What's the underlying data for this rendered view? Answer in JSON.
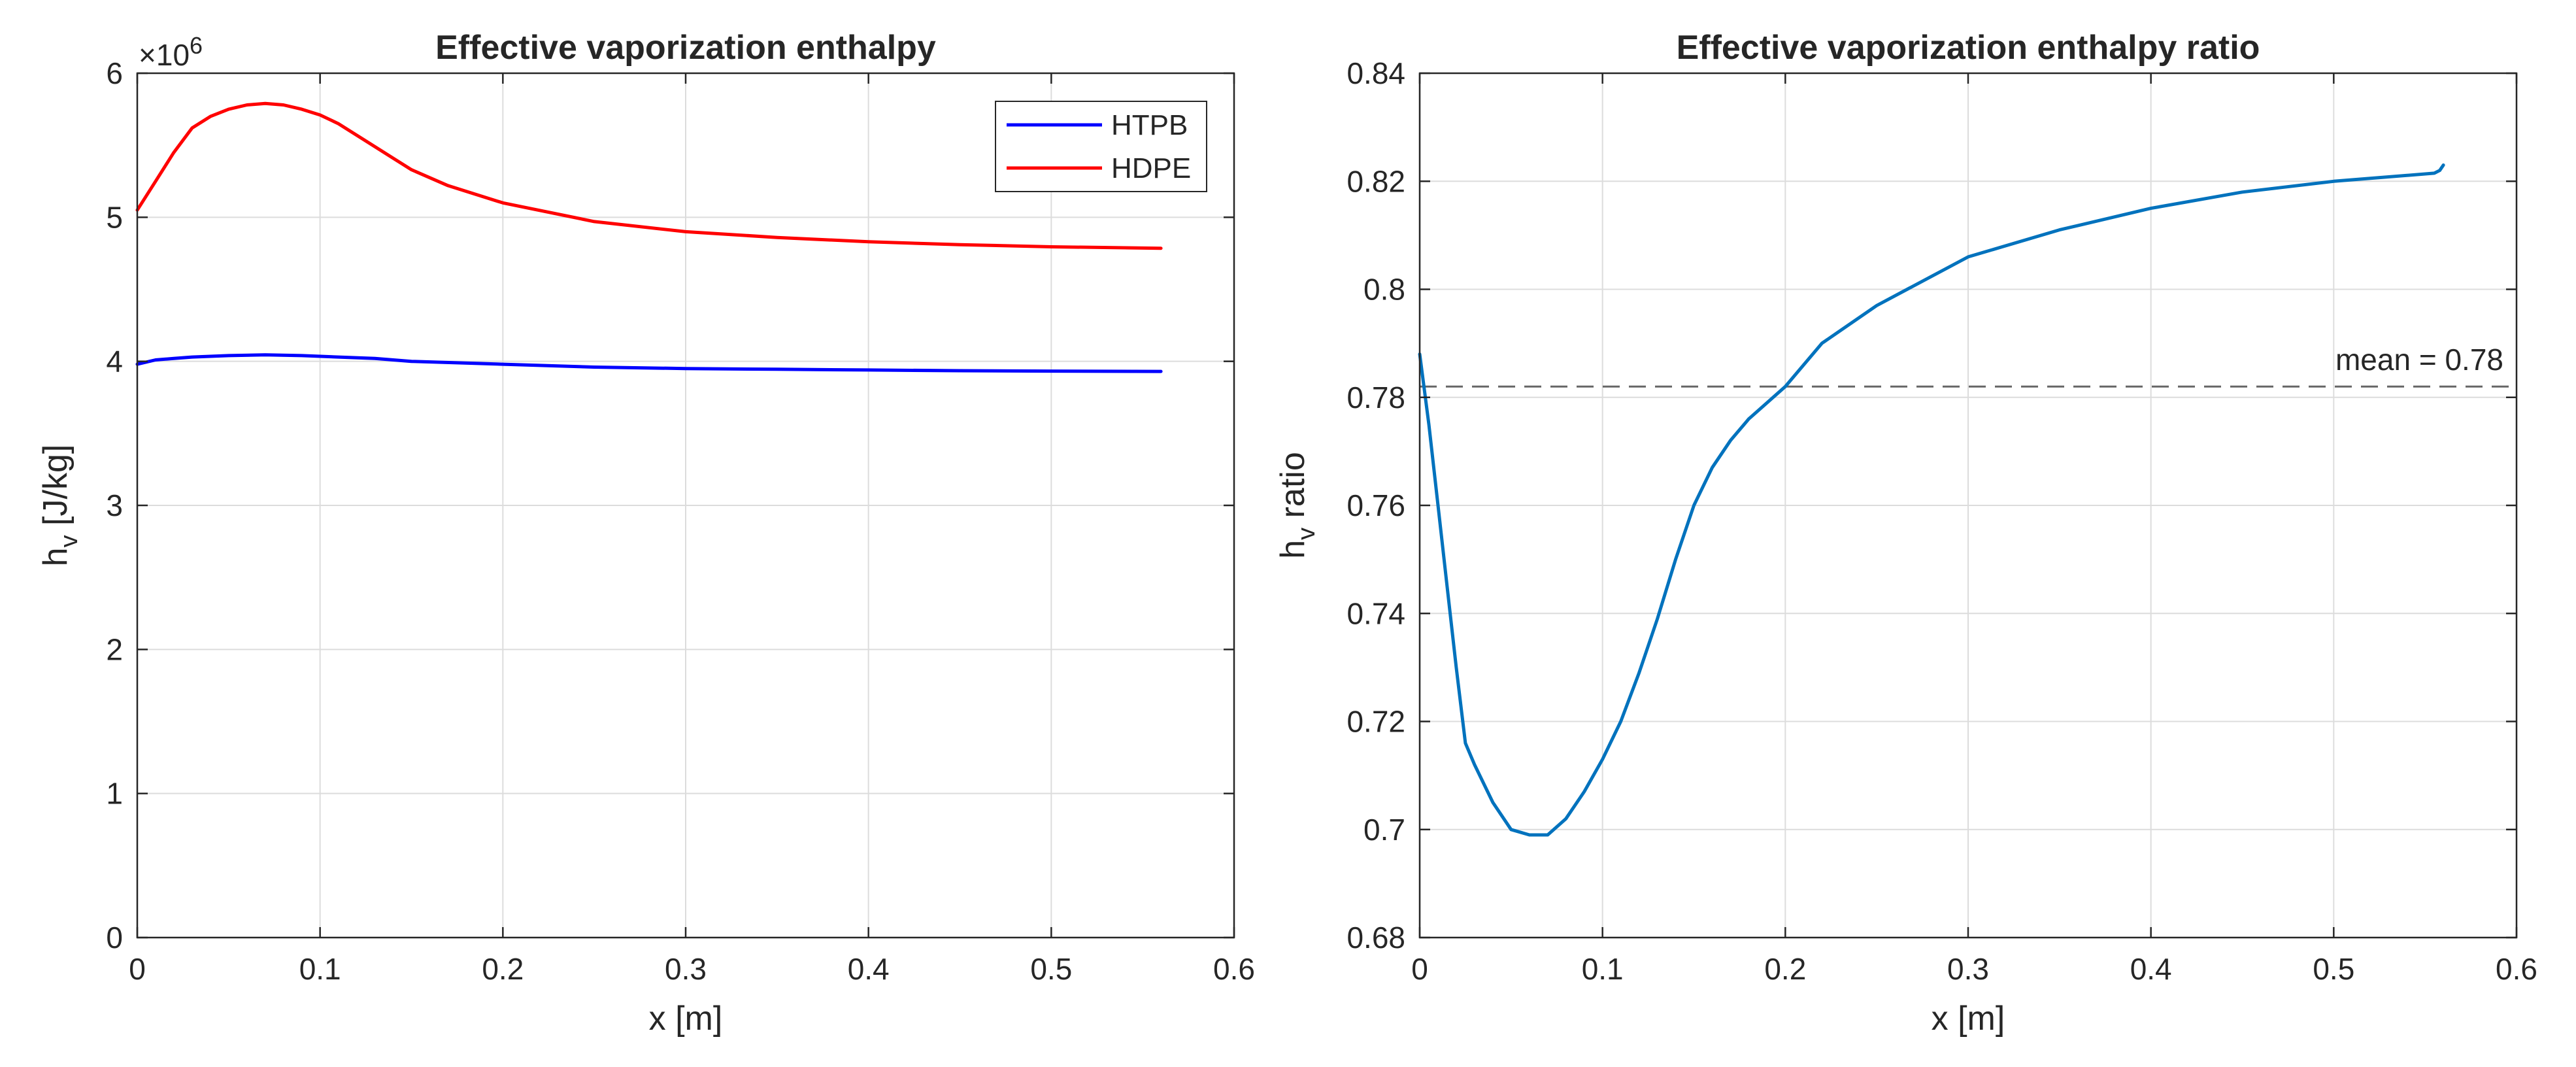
{
  "chart_data": [
    {
      "type": "line",
      "title": "Effective vaporization enthalpy",
      "xlabel": "x [m]",
      "ylabel": "h",
      "ylabel_sub": "v",
      "ylabel_rest": " [J/kg]",
      "exponent_base": "×10",
      "exponent_power": "6",
      "xlim": [
        0,
        0.6
      ],
      "ylim": [
        0,
        6
      ],
      "xticks": [
        0,
        0.1,
        0.2,
        0.3,
        0.4,
        0.5,
        0.6
      ],
      "xtick_labels": [
        "0",
        "0.1",
        "0.2",
        "0.3",
        "0.4",
        "0.5",
        "0.6"
      ],
      "yticks": [
        0,
        1,
        2,
        3,
        4,
        5,
        6
      ],
      "ytick_labels": [
        "0",
        "1",
        "2",
        "3",
        "4",
        "5",
        "6"
      ],
      "grid": true,
      "legend_position": "top-right",
      "series": [
        {
          "name": "HTPB",
          "color": "#0000ff",
          "x": [
            0,
            0.01,
            0.02,
            0.03,
            0.05,
            0.07,
            0.09,
            0.11,
            0.13,
            0.15,
            0.2,
            0.25,
            0.3,
            0.35,
            0.4,
            0.45,
            0.5,
            0.56
          ],
          "y": [
            3.98,
            4.01,
            4.02,
            4.03,
            4.04,
            4.045,
            4.04,
            4.03,
            4.02,
            4.0,
            3.98,
            3.96,
            3.95,
            3.945,
            3.94,
            3.935,
            3.932,
            3.93
          ]
        },
        {
          "name": "HDPE",
          "color": "#ff0000",
          "x": [
            0,
            0.005,
            0.01,
            0.02,
            0.03,
            0.04,
            0.05,
            0.06,
            0.07,
            0.08,
            0.09,
            0.1,
            0.11,
            0.12,
            0.13,
            0.14,
            0.15,
            0.17,
            0.2,
            0.25,
            0.3,
            0.35,
            0.4,
            0.45,
            0.5,
            0.56
          ],
          "y": [
            5.05,
            5.15,
            5.25,
            5.45,
            5.62,
            5.7,
            5.75,
            5.78,
            5.79,
            5.78,
            5.75,
            5.71,
            5.65,
            5.57,
            5.49,
            5.41,
            5.33,
            5.22,
            5.1,
            4.97,
            4.9,
            4.86,
            4.83,
            4.81,
            4.795,
            4.785
          ]
        }
      ]
    },
    {
      "type": "line",
      "title": "Effective vaporization enthalpy ratio",
      "xlabel": "x [m]",
      "ylabel": "h",
      "ylabel_sub": "v",
      "ylabel_rest": " ratio",
      "xlim": [
        0,
        0.6
      ],
      "ylim": [
        0.68,
        0.84
      ],
      "xticks": [
        0,
        0.1,
        0.2,
        0.3,
        0.4,
        0.5,
        0.6
      ],
      "xtick_labels": [
        "0",
        "0.1",
        "0.2",
        "0.3",
        "0.4",
        "0.5",
        "0.6"
      ],
      "yticks": [
        0.68,
        0.7,
        0.72,
        0.74,
        0.76,
        0.78,
        0.8,
        0.82,
        0.84
      ],
      "ytick_labels": [
        "0.68",
        "0.7",
        "0.72",
        "0.74",
        "0.76",
        "0.78",
        "0.8",
        "0.82",
        "0.84"
      ],
      "grid": true,
      "series": [
        {
          "name": "ratio",
          "color": "#0072bd",
          "x": [
            0,
            0.005,
            0.01,
            0.015,
            0.02,
            0.025,
            0.03,
            0.04,
            0.05,
            0.06,
            0.07,
            0.08,
            0.09,
            0.1,
            0.11,
            0.12,
            0.13,
            0.14,
            0.15,
            0.16,
            0.17,
            0.18,
            0.19,
            0.2,
            0.22,
            0.25,
            0.3,
            0.35,
            0.4,
            0.45,
            0.5,
            0.555,
            0.558,
            0.56
          ],
          "y": [
            0.788,
            0.775,
            0.76,
            0.745,
            0.73,
            0.716,
            0.712,
            0.705,
            0.7,
            0.699,
            0.699,
            0.702,
            0.707,
            0.713,
            0.72,
            0.729,
            0.739,
            0.75,
            0.76,
            0.767,
            0.772,
            0.776,
            0.779,
            0.782,
            0.79,
            0.797,
            0.806,
            0.811,
            0.815,
            0.818,
            0.82,
            0.8215,
            0.822,
            0.823
          ]
        }
      ],
      "reference_line": {
        "y": 0.782,
        "label": "mean = 0.78",
        "color": "#666666"
      }
    }
  ]
}
